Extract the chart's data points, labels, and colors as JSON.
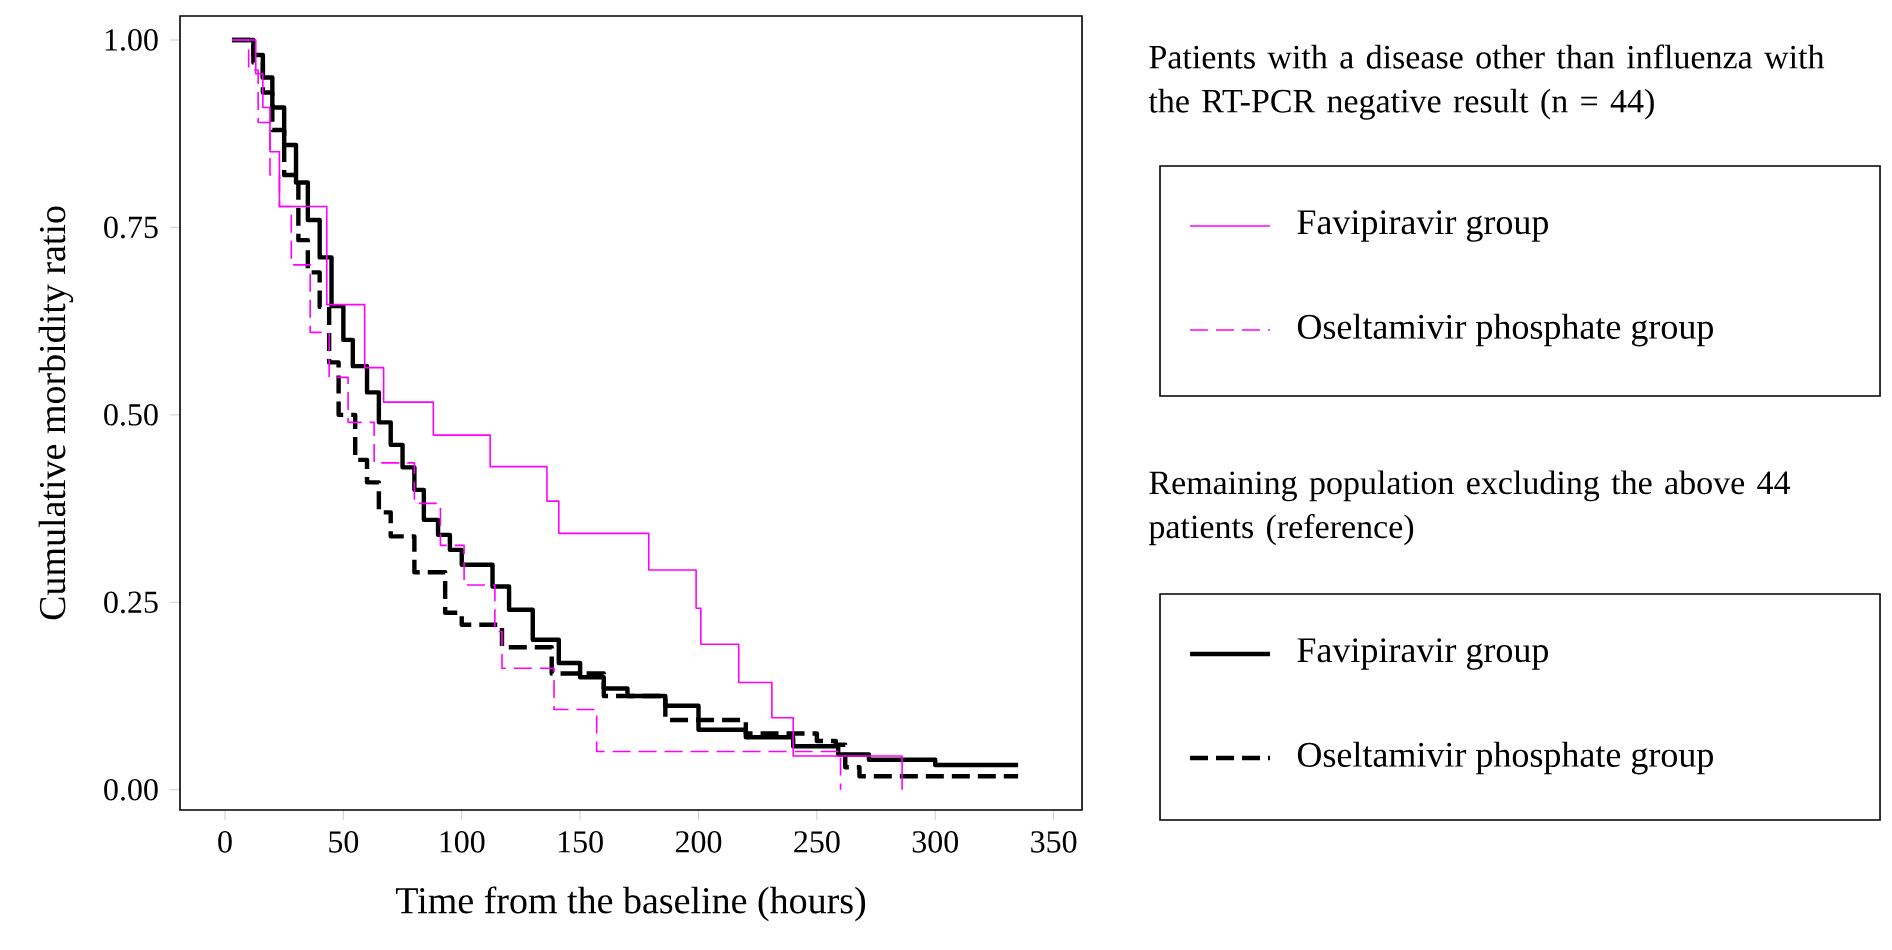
{
  "chart_data": {
    "type": "step",
    "xlabel": "Time from the baseline (hours)",
    "ylabel": "Cumulative morbidity ratio",
    "annotations": [
      "Patients with a disease other than influenza with the RT-PCR negative result (n = 44)",
      "Remaining population excluding the above 44 patients (reference)"
    ],
    "xlim": [
      -19,
      362
    ],
    "ylim": [
      -0.027,
      1.032
    ],
    "xticks": [
      0,
      50,
      100,
      150,
      200,
      250,
      300,
      350
    ],
    "yticks": [
      {
        "value": 0,
        "label": "0.00"
      },
      {
        "value": 0.25,
        "label": "0.25"
      },
      {
        "value": 0.5,
        "label": "0.50"
      },
      {
        "value": 0.75,
        "label": "0.75"
      },
      {
        "value": 1,
        "label": "1.00"
      }
    ],
    "legend": "right",
    "grid": false,
    "series": [
      {
        "name": "Favipiravir group",
        "color": "#ff00ff",
        "line_style": "solid",
        "x": [
          3,
          13,
          16,
          19,
          23,
          43,
          59,
          67,
          88,
          112,
          136,
          141,
          179,
          199,
          201,
          217,
          231,
          240,
          286
        ],
        "values": [
          1.0,
          0.955,
          0.91,
          0.851,
          0.778,
          0.647,
          0.563,
          0.517,
          0.473,
          0.431,
          0.385,
          0.342,
          0.293,
          0.242,
          0.194,
          0.143,
          0.096,
          0.045,
          0.0
        ]
      },
      {
        "name": "Oseltamivir phosphate group",
        "color": "#ff00ff",
        "line_style": "dashed",
        "x": [
          3,
          10,
          14,
          19,
          23,
          28,
          36,
          44,
          52,
          63,
          80,
          91,
          101,
          114,
          117,
          139,
          157,
          260
        ],
        "values": [
          1.0,
          0.96,
          0.89,
          0.82,
          0.778,
          0.7,
          0.61,
          0.55,
          0.49,
          0.436,
          0.382,
          0.326,
          0.273,
          0.211,
          0.162,
          0.107,
          0.051,
          0.0
        ]
      },
      {
        "name": "Favipiravir group",
        "color": "#000000",
        "line_style": "solid",
        "x": [
          3,
          12,
          16,
          20,
          25,
          30,
          35,
          40,
          45,
          50,
          54,
          60,
          65,
          70,
          75,
          80,
          84,
          90,
          95,
          100,
          113,
          120,
          130,
          141,
          150,
          160,
          170,
          186,
          200,
          220,
          240,
          259,
          272,
          300,
          335
        ],
        "values": [
          1.0,
          0.98,
          0.95,
          0.91,
          0.86,
          0.81,
          0.76,
          0.71,
          0.645,
          0.6,
          0.565,
          0.53,
          0.49,
          0.46,
          0.43,
          0.4,
          0.36,
          0.34,
          0.32,
          0.3,
          0.271,
          0.24,
          0.2,
          0.169,
          0.15,
          0.135,
          0.125,
          0.112,
          0.08,
          0.07,
          0.058,
          0.047,
          0.04,
          0.033,
          0.033
        ]
      },
      {
        "name": "Oseltamivir phosphate group",
        "color": "#000000",
        "line_style": "dashed",
        "x": [
          3,
          12,
          16,
          20,
          25,
          31,
          35,
          40,
          44,
          48,
          55,
          60,
          65,
          70,
          80,
          93,
          100,
          117,
          138,
          160,
          186,
          220,
          250,
          258,
          262,
          268,
          335
        ],
        "values": [
          1.0,
          0.97,
          0.93,
          0.88,
          0.82,
          0.733,
          0.69,
          0.644,
          0.57,
          0.5,
          0.44,
          0.41,
          0.37,
          0.338,
          0.29,
          0.236,
          0.22,
          0.19,
          0.155,
          0.125,
          0.093,
          0.075,
          0.065,
          0.06,
          0.03,
          0.018,
          0.018
        ]
      }
    ]
  }
}
